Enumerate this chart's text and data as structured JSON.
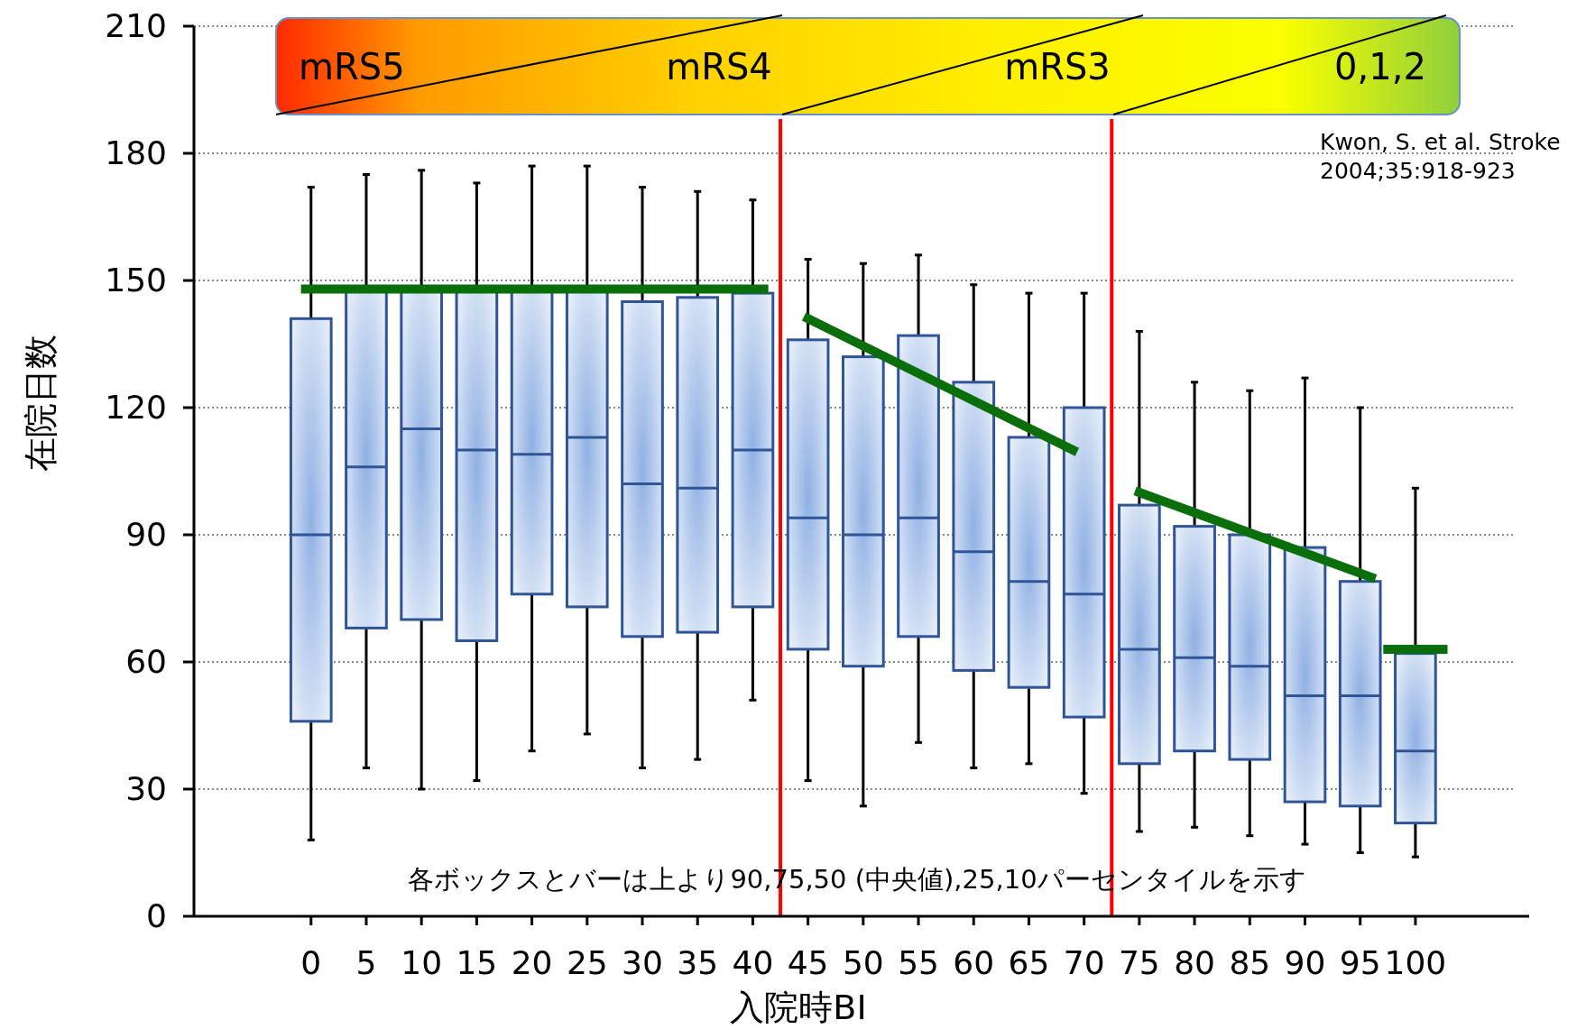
{
  "chart_data": {
    "type": "box",
    "xlabel": "入院時BI",
    "ylabel": "在院日数",
    "x": [
      0,
      5,
      10,
      15,
      20,
      25,
      30,
      35,
      40,
      45,
      50,
      55,
      60,
      65,
      70,
      75,
      80,
      85,
      90,
      95,
      100
    ],
    "xlim": [
      -10.6,
      110.3
    ],
    "xticks": [
      0,
      5,
      10,
      15,
      20,
      25,
      30,
      35,
      40,
      45,
      50,
      55,
      60,
      65,
      70,
      75,
      80,
      85,
      90,
      95,
      100
    ],
    "ylim": [
      0,
      210
    ],
    "yticks": [
      0,
      30,
      60,
      90,
      120,
      150,
      180,
      210
    ],
    "grid": "y",
    "series": [
      {
        "color": "#2f5597",
        "boxes": [
          {
            "low": 18,
            "q1": 46,
            "median": 90,
            "q3": 141,
            "high": 172
          },
          {
            "low": 35,
            "q1": 68,
            "median": 106,
            "q3": 148,
            "high": 175
          },
          {
            "low": 30,
            "q1": 70,
            "median": 115,
            "q3": 148,
            "high": 176
          },
          {
            "low": 32,
            "q1": 65,
            "median": 110,
            "q3": 148,
            "high": 173
          },
          {
            "low": 39,
            "q1": 76,
            "median": 109,
            "q3": 148,
            "high": 177
          },
          {
            "low": 43,
            "q1": 73,
            "median": 113,
            "q3": 148,
            "high": 177
          },
          {
            "low": 35,
            "q1": 66,
            "median": 102,
            "q3": 145,
            "high": 172
          },
          {
            "low": 37,
            "q1": 67,
            "median": 101,
            "q3": 146,
            "high": 171
          },
          {
            "low": 51,
            "q1": 73,
            "median": 110,
            "q3": 147,
            "high": 169
          },
          {
            "low": 32,
            "q1": 63,
            "median": 94,
            "q3": 136,
            "high": 155
          },
          {
            "low": 26,
            "q1": 59,
            "median": 90,
            "q3": 132,
            "high": 154
          },
          {
            "low": 41,
            "q1": 66,
            "median": 94,
            "q3": 137,
            "high": 156
          },
          {
            "low": 35,
            "q1": 58,
            "median": 86,
            "q3": 126,
            "high": 149
          },
          {
            "low": 36,
            "q1": 54,
            "median": 79,
            "q3": 113,
            "high": 147
          },
          {
            "low": 29,
            "q1": 47,
            "median": 76,
            "q3": 120,
            "high": 147
          },
          {
            "low": 20,
            "q1": 36,
            "median": 63,
            "q3": 97,
            "high": 138
          },
          {
            "low": 21,
            "q1": 39,
            "median": 61,
            "q3": 92,
            "high": 126
          },
          {
            "low": 19,
            "q1": 37,
            "median": 59,
            "q3": 90,
            "high": 124
          },
          {
            "low": 17,
            "q1": 27,
            "median": 52,
            "q3": 87,
            "high": 127
          },
          {
            "low": 15,
            "q1": 26,
            "median": 52,
            "q3": 79,
            "high": 120
          },
          {
            "low": 14,
            "q1": 22,
            "median": 39,
            "q3": 62,
            "high": 101
          }
        ]
      },
      {
        "type": "line",
        "color": "#0a6e0a",
        "x": [
          -0.5,
          41
        ],
        "values": [
          148,
          148
        ]
      },
      {
        "type": "line",
        "color": "#0a6e0a",
        "x": [
          45,
          69
        ],
        "values": [
          141,
          110
        ]
      },
      {
        "type": "line",
        "color": "#0a6e0a",
        "x": [
          75,
          96
        ],
        "values": [
          100,
          80
        ]
      },
      {
        "type": "line",
        "color": "#0a6e0a",
        "x": [
          97.5,
          102.5
        ],
        "values": [
          63,
          63
        ]
      }
    ],
    "ref_lines": [
      {
        "axis": "x",
        "value": 42.5,
        "color": "#ff0000"
      },
      {
        "axis": "x",
        "value": 72.5,
        "color": "#ff0000"
      }
    ],
    "annotations": [
      "mRS5",
      "mRS4",
      "mRS3",
      "0,1,2",
      "Kwon, S. et al. Stroke",
      "2004;35:918-923",
      "各ボックスとバーは上より90,75,50 (中央値),25,10パーセンタイルを示す"
    ]
  }
}
